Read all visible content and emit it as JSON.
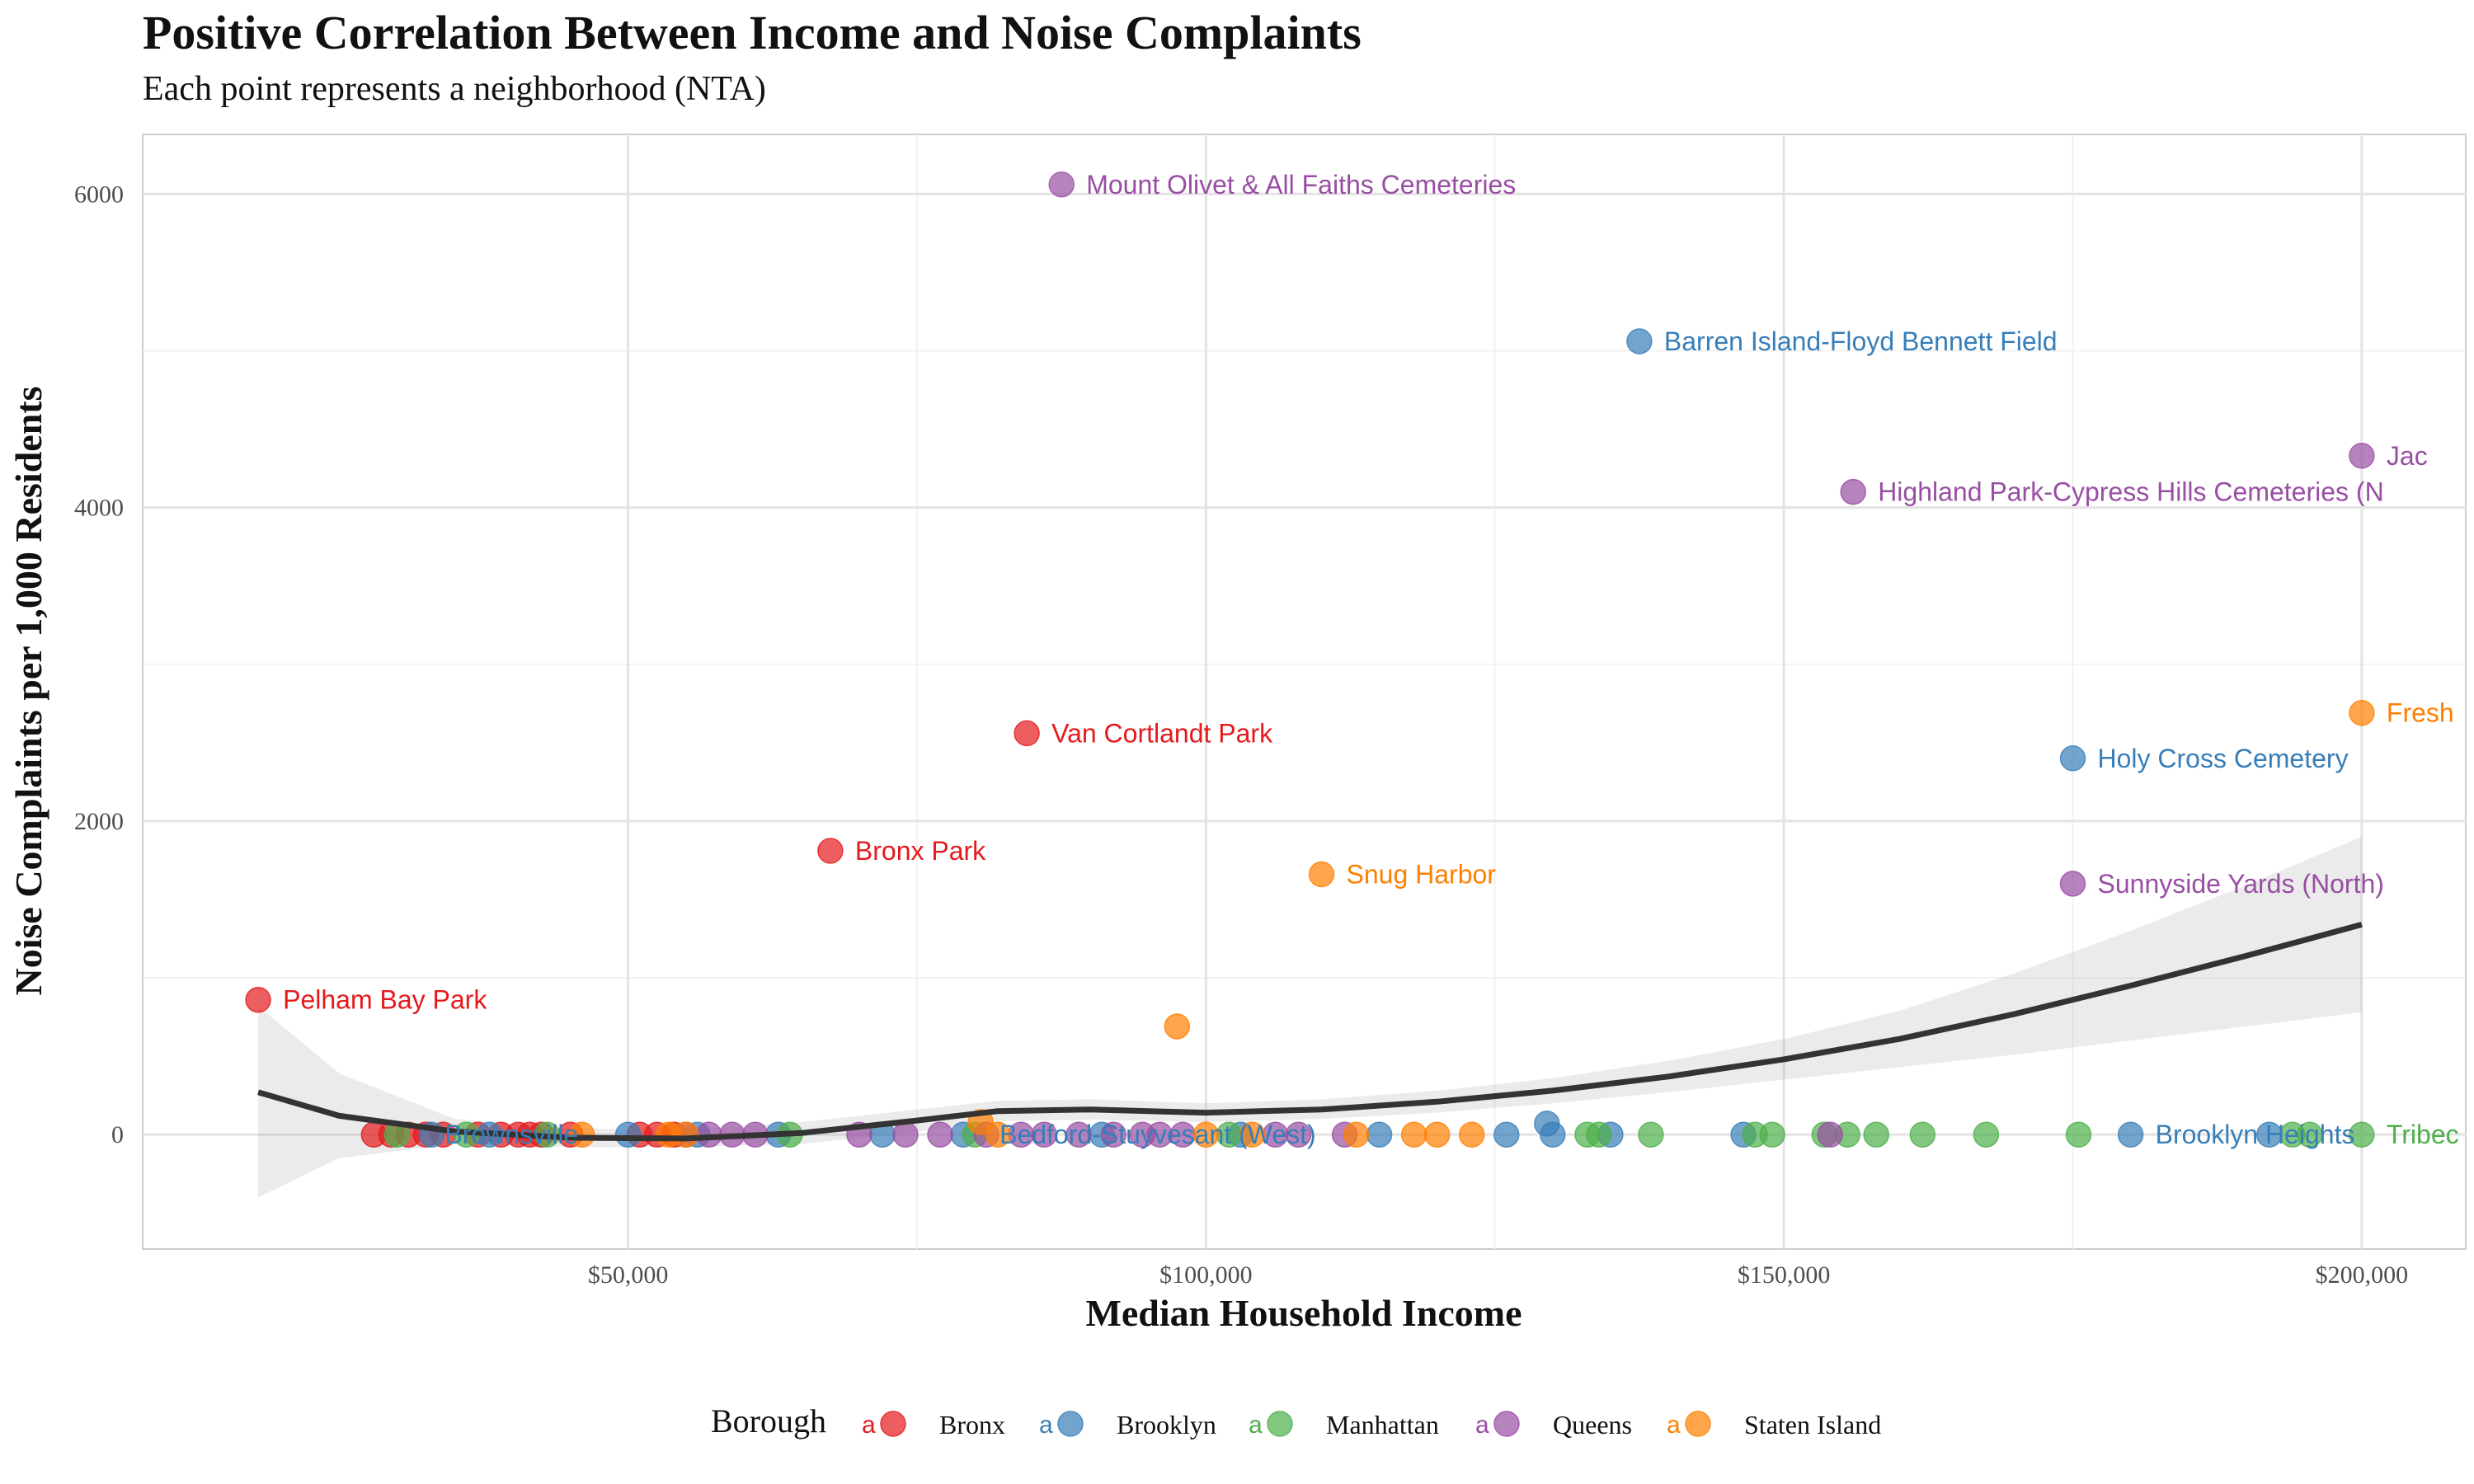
{
  "chart_data": {
    "type": "scatter",
    "title": "Positive Correlation Between Income and Noise Complaints",
    "subtitle": "Each point represents a neighborhood (NTA)",
    "xlabel": "Median Household Income",
    "ylabel": "Noise Complaints per 1,000 Residents",
    "xlim": [
      8000,
      209000
    ],
    "ylim": [
      -730,
      6380
    ],
    "x_ticks": [
      50000,
      100000,
      150000,
      200000
    ],
    "x_tick_labels": [
      "$50,000",
      "$100,000",
      "$150,000",
      "$200,000"
    ],
    "y_ticks": [
      0,
      2000,
      4000,
      6000
    ],
    "y_tick_labels": [
      "0",
      "2000",
      "4000",
      "6000"
    ],
    "grid": true,
    "legend": {
      "title": "Borough",
      "position": "bottom",
      "key_glyph_text": "a"
    },
    "colors": {
      "Bronx": "#e41a1c",
      "Brooklyn": "#377eb8",
      "Manhattan": "#4daf4a",
      "Queens": "#984ea3",
      "Staten Island": "#ff7f00"
    },
    "series": [
      {
        "name": "Bronx",
        "points": [
          [
            18000,
            860
          ],
          [
            28000,
            0
          ],
          [
            29500,
            0
          ],
          [
            31000,
            0
          ],
          [
            32500,
            0
          ],
          [
            34000,
            0
          ],
          [
            37000,
            0
          ],
          [
            39000,
            0
          ],
          [
            40500,
            0
          ],
          [
            41500,
            0
          ],
          [
            42500,
            0
          ],
          [
            45000,
            0
          ],
          [
            51000,
            0
          ],
          [
            52500,
            0
          ],
          [
            54000,
            0
          ],
          [
            67500,
            1810
          ],
          [
            84500,
            2560
          ]
        ]
      },
      {
        "name": "Brooklyn",
        "points": [
          [
            33000,
            0
          ],
          [
            38000,
            0
          ],
          [
            50000,
            0
          ],
          [
            56000,
            0
          ],
          [
            63000,
            0
          ],
          [
            72000,
            0
          ],
          [
            79000,
            0
          ],
          [
            91000,
            0
          ],
          [
            103000,
            0
          ],
          [
            115000,
            0
          ],
          [
            126000,
            0
          ],
          [
            129500,
            70
          ],
          [
            130000,
            0
          ],
          [
            135000,
            0
          ],
          [
            137500,
            5060
          ],
          [
            146500,
            0
          ],
          [
            175000,
            2400
          ],
          [
            180000,
            0
          ],
          [
            192000,
            0
          ]
        ]
      },
      {
        "name": "Manhattan",
        "points": [
          [
            30000,
            0
          ],
          [
            36000,
            0
          ],
          [
            43000,
            0
          ],
          [
            64000,
            0
          ],
          [
            80000,
            0
          ],
          [
            102000,
            0
          ],
          [
            133000,
            0
          ],
          [
            134000,
            0
          ],
          [
            138500,
            0
          ],
          [
            147500,
            0
          ],
          [
            149000,
            0
          ],
          [
            153500,
            0
          ],
          [
            155500,
            0
          ],
          [
            158000,
            0
          ],
          [
            162000,
            0
          ],
          [
            167500,
            0
          ],
          [
            175500,
            0
          ],
          [
            194000,
            0
          ],
          [
            195500,
            0
          ],
          [
            200000,
            0
          ]
        ]
      },
      {
        "name": "Queens",
        "points": [
          [
            55000,
            0
          ],
          [
            57000,
            0
          ],
          [
            59000,
            0
          ],
          [
            61000,
            0
          ],
          [
            70000,
            0
          ],
          [
            74000,
            0
          ],
          [
            77000,
            0
          ],
          [
            81000,
            0
          ],
          [
            84000,
            0
          ],
          [
            86000,
            0
          ],
          [
            87500,
            6060
          ],
          [
            89000,
            0
          ],
          [
            92000,
            0
          ],
          [
            94500,
            0
          ],
          [
            96000,
            0
          ],
          [
            98000,
            0
          ],
          [
            106000,
            0
          ],
          [
            108000,
            0
          ],
          [
            112000,
            0
          ],
          [
            154000,
            0
          ],
          [
            156000,
            4100
          ],
          [
            175000,
            1600
          ],
          [
            200000,
            4330
          ]
        ]
      },
      {
        "name": "Staten Island",
        "points": [
          [
            46000,
            0
          ],
          [
            53500,
            0
          ],
          [
            55000,
            0
          ],
          [
            80500,
            80
          ],
          [
            82000,
            0
          ],
          [
            97500,
            690
          ],
          [
            100000,
            0
          ],
          [
            104000,
            0
          ],
          [
            110000,
            1660
          ],
          [
            113000,
            0
          ],
          [
            118000,
            0
          ],
          [
            120000,
            0
          ],
          [
            123000,
            0
          ],
          [
            200000,
            2690
          ]
        ]
      }
    ],
    "point_labels": [
      {
        "text": "Mount Olivet & All Faiths Cemeteries",
        "series": "Queens",
        "x": 87500,
        "y": 6060
      },
      {
        "text": "Barren Island-Floyd Bennett Field",
        "series": "Brooklyn",
        "x": 137500,
        "y": 5060
      },
      {
        "text": "Jac",
        "series": "Queens",
        "x": 200000,
        "y": 4330
      },
      {
        "text": "Highland Park-Cypress Hills Cemeteries (N",
        "series": "Queens",
        "x": 156000,
        "y": 4100
      },
      {
        "text": "Fresh",
        "series": "Staten Island",
        "x": 200000,
        "y": 2690
      },
      {
        "text": "Van Cortlandt Park",
        "series": "Bronx",
        "x": 84500,
        "y": 2560
      },
      {
        "text": "Holy Cross Cemetery",
        "series": "Brooklyn",
        "x": 175000,
        "y": 2400
      },
      {
        "text": "Bronx Park",
        "series": "Bronx",
        "x": 67500,
        "y": 1810
      },
      {
        "text": "Snug Harbor",
        "series": "Staten Island",
        "x": 110000,
        "y": 1660
      },
      {
        "text": "Sunnyside Yards (North)",
        "series": "Queens",
        "x": 175000,
        "y": 1600
      },
      {
        "text": "Pelham Bay Park",
        "series": "Bronx",
        "x": 18000,
        "y": 860
      },
      {
        "text": "Brownsville",
        "series": "Brooklyn",
        "x": 32000,
        "y": 0
      },
      {
        "text": "Bedford-Stuyvesant (West)",
        "series": "Brooklyn",
        "x": 80000,
        "y": 0
      },
      {
        "text": "Brooklyn Heights",
        "series": "Brooklyn",
        "x": 180000,
        "y": 0
      },
      {
        "text": "Tribec",
        "series": "Manhattan",
        "x": 200000,
        "y": 0
      }
    ],
    "smooth": {
      "x": [
        18000,
        25000,
        35000,
        45000,
        55000,
        65000,
        75000,
        82000,
        90000,
        100000,
        110000,
        120000,
        130000,
        140000,
        150000,
        160000,
        170000,
        180000,
        190000,
        200000
      ],
      "y": [
        270,
        120,
        20,
        -20,
        -25,
        10,
        90,
        150,
        160,
        140,
        160,
        210,
        280,
        370,
        480,
        610,
        770,
        950,
        1140,
        1340
      ],
      "ymin": [
        -400,
        -150,
        -60,
        -80,
        -80,
        -60,
        20,
        85,
        95,
        80,
        100,
        140,
        200,
        270,
        350,
        430,
        510,
        600,
        690,
        780
      ],
      "ymax": [
        820,
        390,
        100,
        40,
        30,
        80,
        160,
        215,
        225,
        200,
        225,
        280,
        360,
        470,
        610,
        790,
        1030,
        1300,
        1590,
        1900
      ]
    }
  }
}
